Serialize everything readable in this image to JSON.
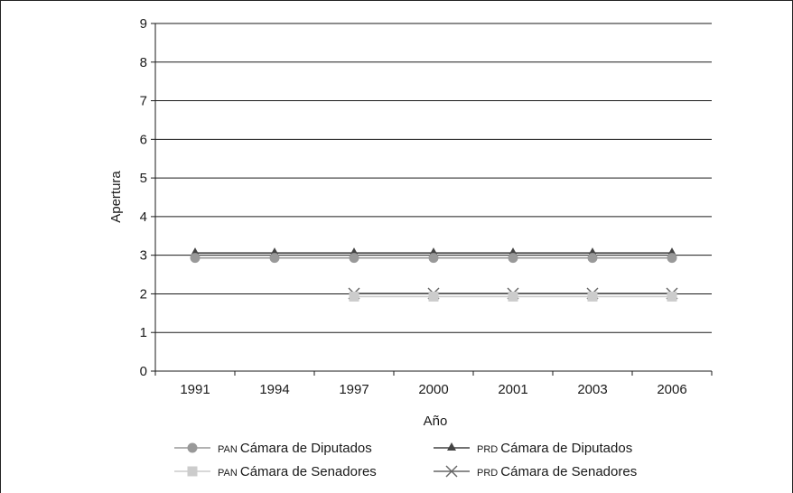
{
  "chart_data": {
    "type": "line",
    "categories": [
      "1991",
      "1994",
      "1997",
      "2000",
      "2001",
      "2003",
      "2006"
    ],
    "xlabel": "Año",
    "ylabel": "Apertura",
    "ylim": [
      0,
      9
    ],
    "yticks": [
      0,
      1,
      2,
      3,
      4,
      5,
      6,
      7,
      8,
      9
    ],
    "grid": true,
    "legend_position": "bottom",
    "series": [
      {
        "name": "Cámara de Diputados",
        "party": "PAN",
        "marker": "circle",
        "color": "#999999",
        "values": [
          3,
          3,
          3,
          3,
          3,
          3,
          3
        ]
      },
      {
        "name": "Cámara de Diputados",
        "party": "PRD",
        "marker": "triangle",
        "color": "#444444",
        "values": [
          3,
          3,
          3,
          3,
          3,
          3,
          3
        ]
      },
      {
        "name": "Cámara de Senadores",
        "party": "PAN",
        "marker": "square",
        "color": "#cccccc",
        "values": [
          null,
          null,
          2,
          2,
          2,
          2,
          2
        ]
      },
      {
        "name": "Cámara de Senadores",
        "party": "PRD",
        "marker": "x",
        "color": "#666666",
        "values": [
          null,
          null,
          2,
          2,
          2,
          2,
          2
        ]
      }
    ]
  }
}
